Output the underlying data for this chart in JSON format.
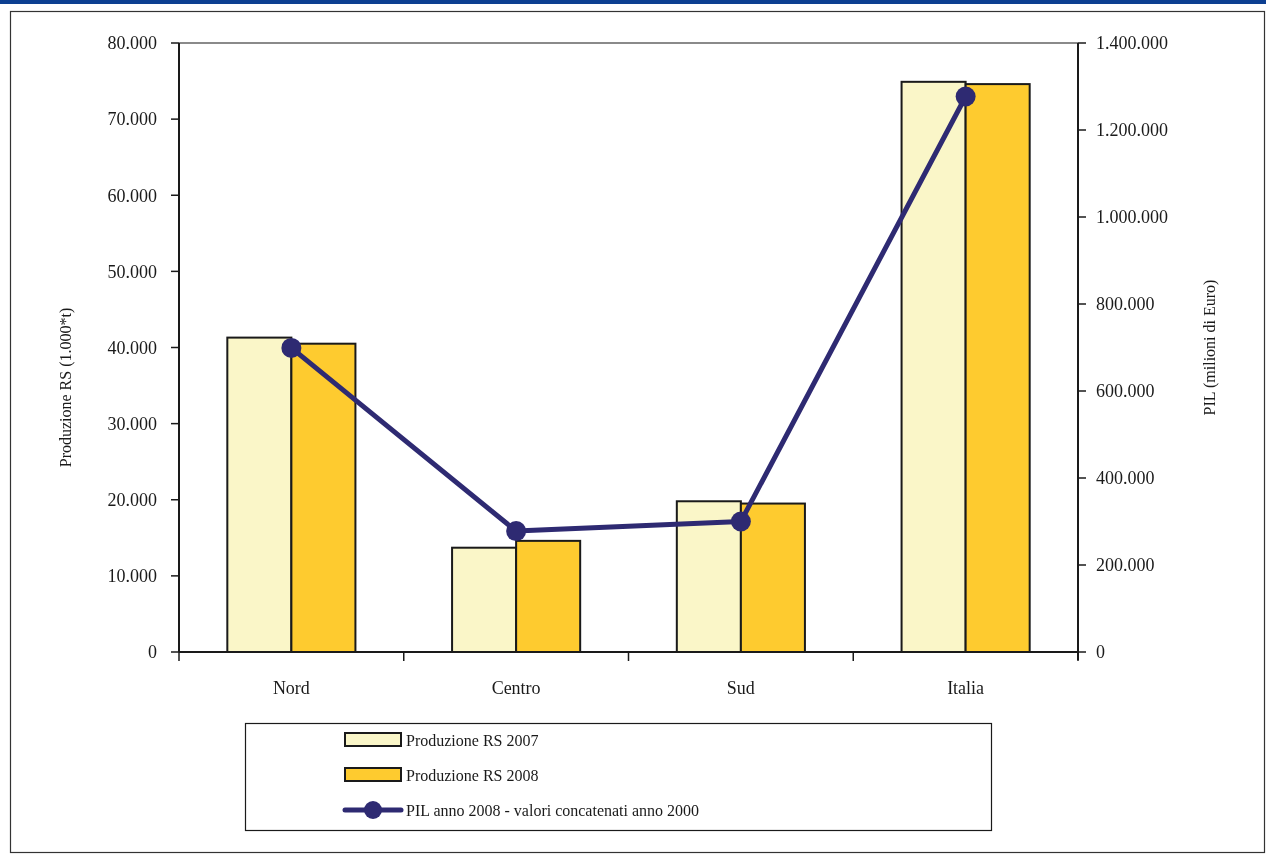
{
  "chart_data": {
    "type": "bar",
    "categories": [
      "Nord",
      "Centro",
      "Sud",
      "Italia"
    ],
    "series": [
      {
        "name": "Produzione RS 2007",
        "color": "#faf6c8",
        "values": [
          41300,
          13700,
          19800,
          74900
        ]
      },
      {
        "name": "Produzione RS 2008",
        "color": "#fecb2f",
        "values": [
          40500,
          14600,
          19500,
          74600
        ]
      },
      {
        "name": "PIL anno 2008 - valori concatenati anno 2000",
        "type": "line",
        "axis": "y2",
        "color": "#2e2a72",
        "values": [
          699000,
          278000,
          300000,
          1277000
        ]
      }
    ],
    "ylabel": "Produzione RS (1.000*t)",
    "y2label": "PIL (milioni di Euro)",
    "ylim": [
      0,
      80000
    ],
    "yticks": [
      0,
      {
        "value": 10000,
        "label": "10.000"
      },
      {
        "value": 20000,
        "label": "20.000"
      },
      {
        "value": 30000,
        "label": "30.000"
      },
      {
        "value": 40000,
        "label": "40.000"
      },
      {
        "value": 50000,
        "label": "50.000"
      },
      {
        "value": 60000,
        "label": "60.000"
      },
      {
        "value": 70000,
        "label": "70.000"
      },
      {
        "value": 80000,
        "label": "80.000"
      }
    ],
    "y2lim": [
      0,
      1400000
    ],
    "y2ticks": [
      0,
      {
        "value": 200000,
        "label": "200.000"
      },
      {
        "value": 400000,
        "label": "400.000"
      },
      {
        "value": 600000,
        "label": "600.000"
      },
      {
        "value": 800000,
        "label": "800.000"
      },
      {
        "value": 1000000,
        "label": "1.000.000"
      },
      {
        "value": 1200000,
        "label": "1.200.000"
      },
      {
        "value": 1400000,
        "label": "1.400.000"
      }
    ],
    "legend": "bottom",
    "marker": "circle"
  }
}
